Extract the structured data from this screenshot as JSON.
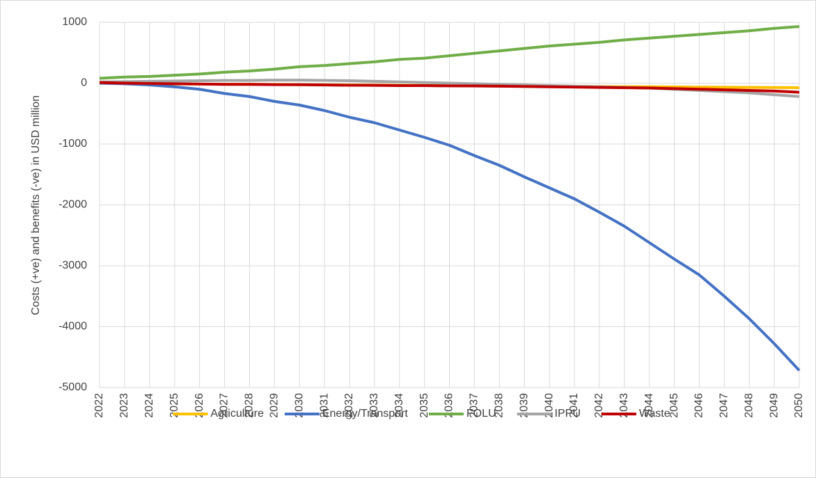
{
  "chart_data": {
    "type": "line",
    "ylabel": "Costs (+ve)  and benefits (-ve) in USD million",
    "categories": [
      "2022",
      "2023",
      "2024",
      "2025",
      "2026",
      "2027",
      "2028",
      "2029",
      "2030",
      "2031",
      "2032",
      "2033",
      "2034",
      "2035",
      "2036",
      "2037",
      "2038",
      "2039",
      "2040",
      "2041",
      "2042",
      "2043",
      "2044",
      "2045",
      "2046",
      "2047",
      "2048",
      "2049",
      "2050"
    ],
    "ylim": [
      -5000,
      1000
    ],
    "yticks": [
      1000,
      0,
      -1000,
      -2000,
      -3000,
      -4000,
      -5000
    ],
    "grid": true,
    "legend": "bottom",
    "series": [
      {
        "name": "Agriculture",
        "color": "#ffc000",
        "values": [
          0,
          -5,
          -10,
          -12,
          -15,
          -18,
          -20,
          -22,
          -25,
          -27,
          -30,
          -32,
          -35,
          -37,
          -40,
          -42,
          -45,
          -47,
          -50,
          -52,
          -55,
          -57,
          -60,
          -62,
          -65,
          -67,
          -70,
          -72,
          -75
        ]
      },
      {
        "name": "Energy/Transport",
        "color": "#4472c4",
        "values": [
          0,
          -10,
          -30,
          -60,
          -100,
          -170,
          -220,
          -300,
          -360,
          -450,
          -560,
          -650,
          -770,
          -890,
          -1020,
          -1190,
          -1350,
          -1540,
          -1720,
          -1900,
          -2120,
          -2350,
          -2620,
          -2890,
          -3150,
          -3500,
          -3870,
          -4280,
          -4720
        ]
      },
      {
        "name": "FOLU",
        "color": "#70ad47",
        "values": [
          80,
          100,
          110,
          130,
          150,
          180,
          200,
          230,
          270,
          290,
          320,
          350,
          390,
          410,
          450,
          490,
          530,
          570,
          610,
          640,
          670,
          710,
          740,
          770,
          800,
          830,
          860,
          900,
          930
        ]
      },
      {
        "name": "IPPU",
        "color": "#a5a5a5",
        "values": [
          20,
          25,
          30,
          35,
          40,
          45,
          45,
          50,
          50,
          45,
          40,
          30,
          20,
          10,
          0,
          -10,
          -20,
          -30,
          -40,
          -50,
          -60,
          -70,
          -80,
          -100,
          -120,
          -140,
          -160,
          -190,
          -220
        ]
      },
      {
        "name": "Waste",
        "color": "#c00000",
        "values": [
          10,
          0,
          -5,
          -10,
          -15,
          -20,
          -20,
          -25,
          -25,
          -30,
          -35,
          -35,
          -40,
          -40,
          -45,
          -45,
          -50,
          -55,
          -60,
          -65,
          -70,
          -75,
          -80,
          -90,
          -100,
          -110,
          -120,
          -130,
          -150
        ]
      }
    ]
  }
}
